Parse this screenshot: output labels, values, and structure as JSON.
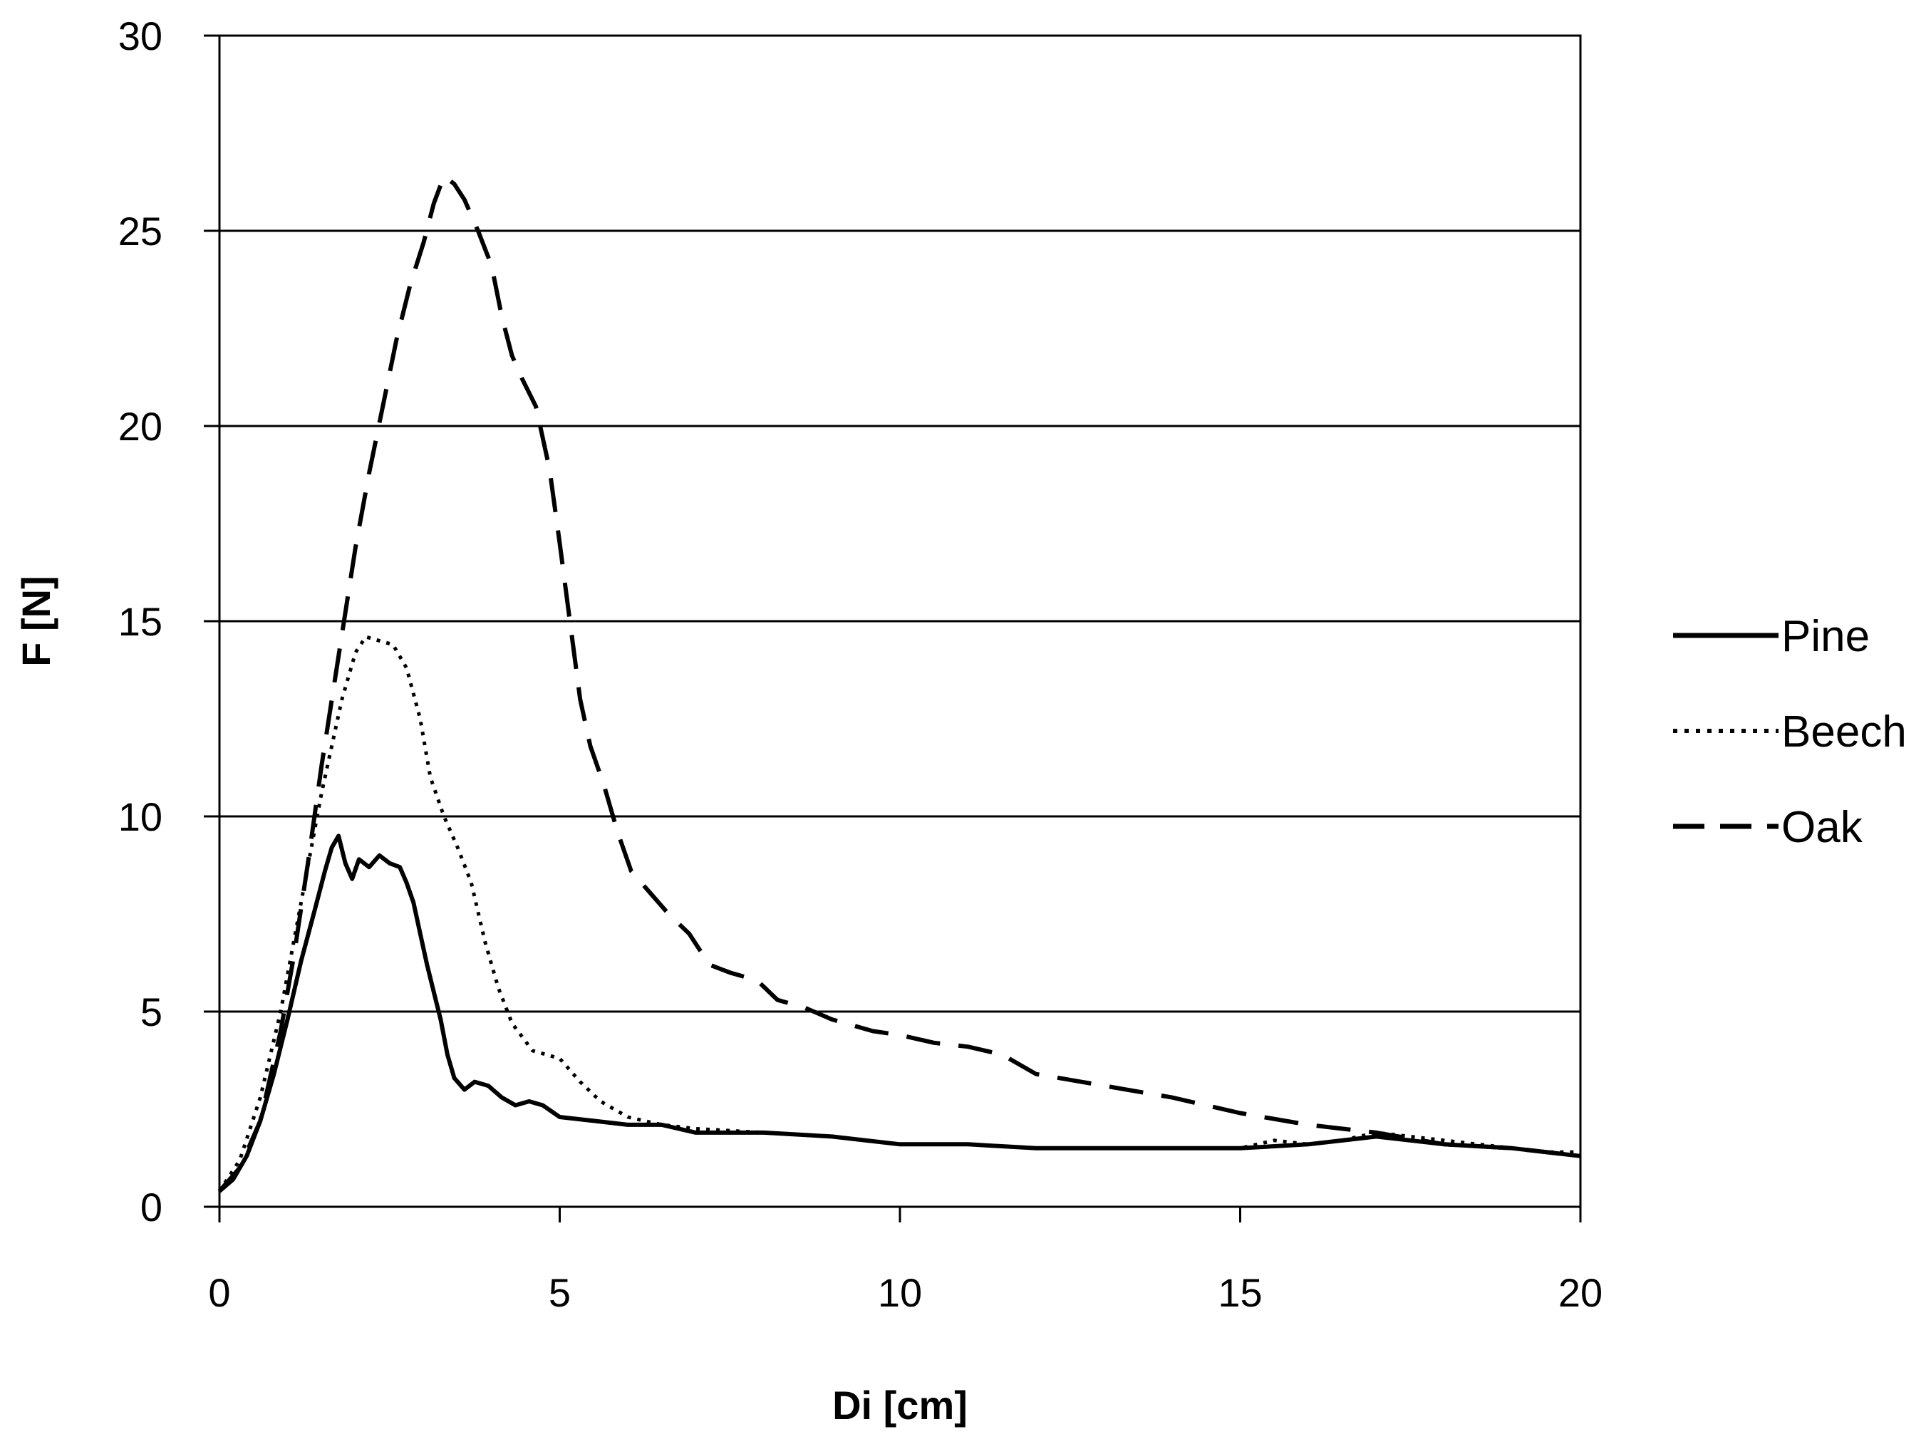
{
  "chart_data": {
    "type": "line",
    "title": "",
    "xlabel": "Di [cm]",
    "ylabel": "F [N]",
    "xlim": [
      0,
      20
    ],
    "ylim": [
      0,
      30
    ],
    "x_ticks": [
      0,
      5,
      10,
      15,
      20
    ],
    "y_ticks": [
      0,
      5,
      10,
      15,
      20,
      25,
      30
    ],
    "x_tick_labels": [
      "0",
      "5",
      "10",
      "15",
      "20"
    ],
    "y_tick_labels": [
      "0",
      "5",
      "10",
      "15",
      "20",
      "25",
      "30"
    ],
    "grid": "horizontal",
    "legend_position": "right",
    "series": [
      {
        "name": "Pine",
        "style": "solid",
        "color": "#000000",
        "points": [
          [
            0,
            0.4
          ],
          [
            0.2,
            0.7
          ],
          [
            0.4,
            1.3
          ],
          [
            0.6,
            2.2
          ],
          [
            0.8,
            3.4
          ],
          [
            1.0,
            4.8
          ],
          [
            1.2,
            6.3
          ],
          [
            1.4,
            7.6
          ],
          [
            1.55,
            8.6
          ],
          [
            1.65,
            9.2
          ],
          [
            1.75,
            9.5
          ],
          [
            1.85,
            8.8
          ],
          [
            1.95,
            8.4
          ],
          [
            2.05,
            8.9
          ],
          [
            2.2,
            8.7
          ],
          [
            2.35,
            9.0
          ],
          [
            2.5,
            8.8
          ],
          [
            2.65,
            8.7
          ],
          [
            2.75,
            8.3
          ],
          [
            2.85,
            7.8
          ],
          [
            2.95,
            7.0
          ],
          [
            3.05,
            6.2
          ],
          [
            3.15,
            5.5
          ],
          [
            3.25,
            4.8
          ],
          [
            3.35,
            3.9
          ],
          [
            3.45,
            3.3
          ],
          [
            3.6,
            3.0
          ],
          [
            3.75,
            3.2
          ],
          [
            3.95,
            3.1
          ],
          [
            4.15,
            2.8
          ],
          [
            4.35,
            2.6
          ],
          [
            4.55,
            2.7
          ],
          [
            4.75,
            2.6
          ],
          [
            5.0,
            2.3
          ],
          [
            5.5,
            2.2
          ],
          [
            6.0,
            2.1
          ],
          [
            6.5,
            2.1
          ],
          [
            7.0,
            1.9
          ],
          [
            8.0,
            1.9
          ],
          [
            9.0,
            1.8
          ],
          [
            10.0,
            1.6
          ],
          [
            11.0,
            1.6
          ],
          [
            12.0,
            1.5
          ],
          [
            13.0,
            1.5
          ],
          [
            14.0,
            1.5
          ],
          [
            15.0,
            1.5
          ],
          [
            16.0,
            1.6
          ],
          [
            17.0,
            1.8
          ],
          [
            18.0,
            1.6
          ],
          [
            19.0,
            1.5
          ],
          [
            20.0,
            1.3
          ]
        ]
      },
      {
        "name": "Beech",
        "style": "dotted",
        "color": "#000000",
        "points": [
          [
            0,
            0.4
          ],
          [
            0.3,
            1.2
          ],
          [
            0.6,
            2.8
          ],
          [
            0.9,
            5.0
          ],
          [
            1.2,
            7.8
          ],
          [
            1.5,
            10.6
          ],
          [
            1.8,
            13.0
          ],
          [
            2.0,
            14.2
          ],
          [
            2.15,
            14.6
          ],
          [
            2.35,
            14.5
          ],
          [
            2.55,
            14.4
          ],
          [
            2.75,
            13.8
          ],
          [
            2.95,
            12.5
          ],
          [
            3.1,
            11.0
          ],
          [
            3.3,
            10.0
          ],
          [
            3.5,
            9.2
          ],
          [
            3.7,
            8.3
          ],
          [
            3.9,
            6.8
          ],
          [
            4.1,
            5.6
          ],
          [
            4.3,
            4.7
          ],
          [
            4.6,
            4.0
          ],
          [
            5.0,
            3.8
          ],
          [
            5.3,
            3.2
          ],
          [
            5.6,
            2.7
          ],
          [
            6.0,
            2.3
          ],
          [
            6.5,
            2.1
          ],
          [
            7.0,
            2.0
          ],
          [
            8.0,
            1.9
          ],
          [
            9.0,
            1.8
          ],
          [
            10.0,
            1.6
          ],
          [
            11.0,
            1.6
          ],
          [
            12.0,
            1.5
          ],
          [
            13.0,
            1.5
          ],
          [
            14.0,
            1.5
          ],
          [
            15.0,
            1.5
          ],
          [
            15.5,
            1.7
          ],
          [
            16.0,
            1.6
          ],
          [
            16.5,
            1.7
          ],
          [
            17.0,
            1.9
          ],
          [
            17.5,
            1.8
          ],
          [
            18.0,
            1.7
          ],
          [
            18.5,
            1.6
          ],
          [
            19.0,
            1.5
          ],
          [
            19.5,
            1.4
          ],
          [
            20.0,
            1.4
          ]
        ]
      },
      {
        "name": "Oak",
        "style": "dashed",
        "color": "#000000",
        "points": [
          [
            0,
            0.4
          ],
          [
            0.3,
            1.0
          ],
          [
            0.6,
            2.2
          ],
          [
            0.9,
            4.5
          ],
          [
            1.1,
            6.5
          ],
          [
            1.3,
            8.8
          ],
          [
            1.5,
            11.3
          ],
          [
            1.75,
            14.1
          ],
          [
            2.0,
            16.9
          ],
          [
            2.2,
            18.8
          ],
          [
            2.4,
            20.5
          ],
          [
            2.6,
            22.2
          ],
          [
            2.8,
            23.6
          ],
          [
            3.0,
            24.7
          ],
          [
            3.15,
            25.7
          ],
          [
            3.3,
            26.4
          ],
          [
            3.45,
            26.2
          ],
          [
            3.6,
            25.8
          ],
          [
            3.8,
            25.0
          ],
          [
            4.0,
            24.1
          ],
          [
            4.15,
            22.8
          ],
          [
            4.3,
            21.8
          ],
          [
            4.45,
            21.2
          ],
          [
            4.65,
            20.5
          ],
          [
            4.85,
            18.9
          ],
          [
            5.0,
            17.0
          ],
          [
            5.15,
            15.0
          ],
          [
            5.3,
            13.0
          ],
          [
            5.45,
            11.8
          ],
          [
            5.65,
            10.8
          ],
          [
            5.85,
            9.6
          ],
          [
            6.05,
            8.6
          ],
          [
            6.3,
            8.1
          ],
          [
            6.6,
            7.5
          ],
          [
            6.9,
            7.0
          ],
          [
            7.2,
            6.2
          ],
          [
            7.5,
            6.0
          ],
          [
            7.9,
            5.8
          ],
          [
            8.2,
            5.3
          ],
          [
            8.6,
            5.1
          ],
          [
            9.0,
            4.8
          ],
          [
            9.6,
            4.5
          ],
          [
            10.0,
            4.4
          ],
          [
            10.5,
            4.2
          ],
          [
            11.0,
            4.1
          ],
          [
            11.5,
            3.9
          ],
          [
            12.0,
            3.4
          ],
          [
            13.0,
            3.1
          ],
          [
            14.0,
            2.8
          ],
          [
            15.0,
            2.4
          ],
          [
            16.0,
            2.1
          ],
          [
            17.0,
            1.9
          ],
          [
            18.0,
            1.6
          ],
          [
            19.0,
            1.5
          ],
          [
            20.0,
            1.3
          ]
        ]
      }
    ]
  }
}
